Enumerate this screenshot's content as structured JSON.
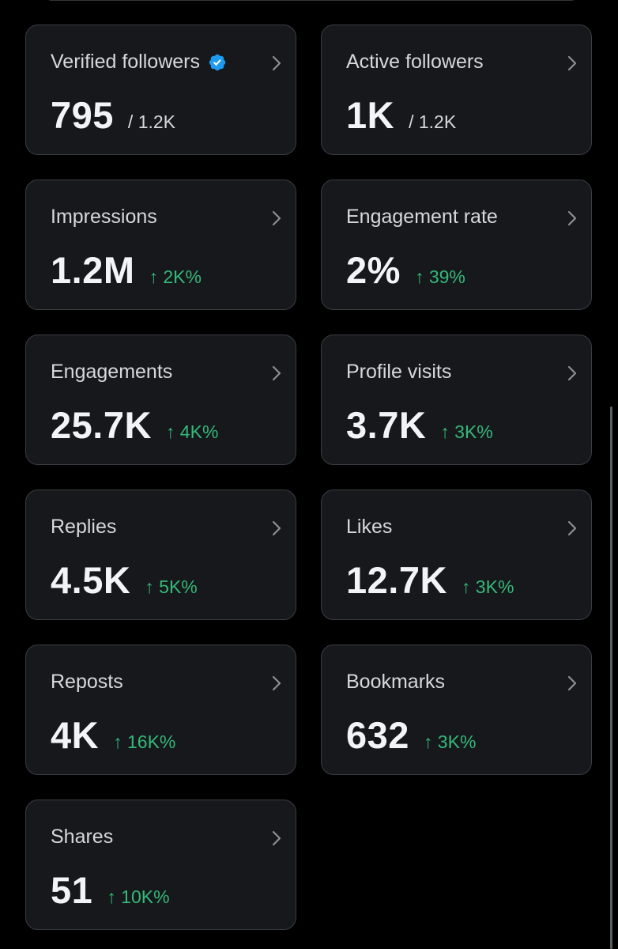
{
  "colors": {
    "background": "#000000",
    "card": "#16181c",
    "border": "#3a3d42",
    "positive": "#35b978",
    "verified": "#1d9bf0"
  },
  "cards": [
    {
      "title": "Verified followers",
      "value": "795",
      "sub": "/ 1.2K",
      "verified": true
    },
    {
      "title": "Active followers",
      "value": "1K",
      "sub": "/ 1.2K"
    },
    {
      "title": "Impressions",
      "value": "1.2M",
      "delta": "↑ 2K%"
    },
    {
      "title": "Engagement rate",
      "value": "2%",
      "delta": "↑ 39%"
    },
    {
      "title": "Engagements",
      "value": "25.7K",
      "delta": "↑ 4K%"
    },
    {
      "title": "Profile visits",
      "value": "3.7K",
      "delta": "↑ 3K%"
    },
    {
      "title": "Replies",
      "value": "4.5K",
      "delta": "↑ 5K%"
    },
    {
      "title": "Likes",
      "value": "12.7K",
      "delta": "↑ 3K%"
    },
    {
      "title": "Reposts",
      "value": "4K",
      "delta": "↑ 16K%"
    },
    {
      "title": "Bookmarks",
      "value": "632",
      "delta": "↑ 3K%"
    },
    {
      "title": "Shares",
      "value": "51",
      "delta": "↑ 10K%"
    }
  ]
}
